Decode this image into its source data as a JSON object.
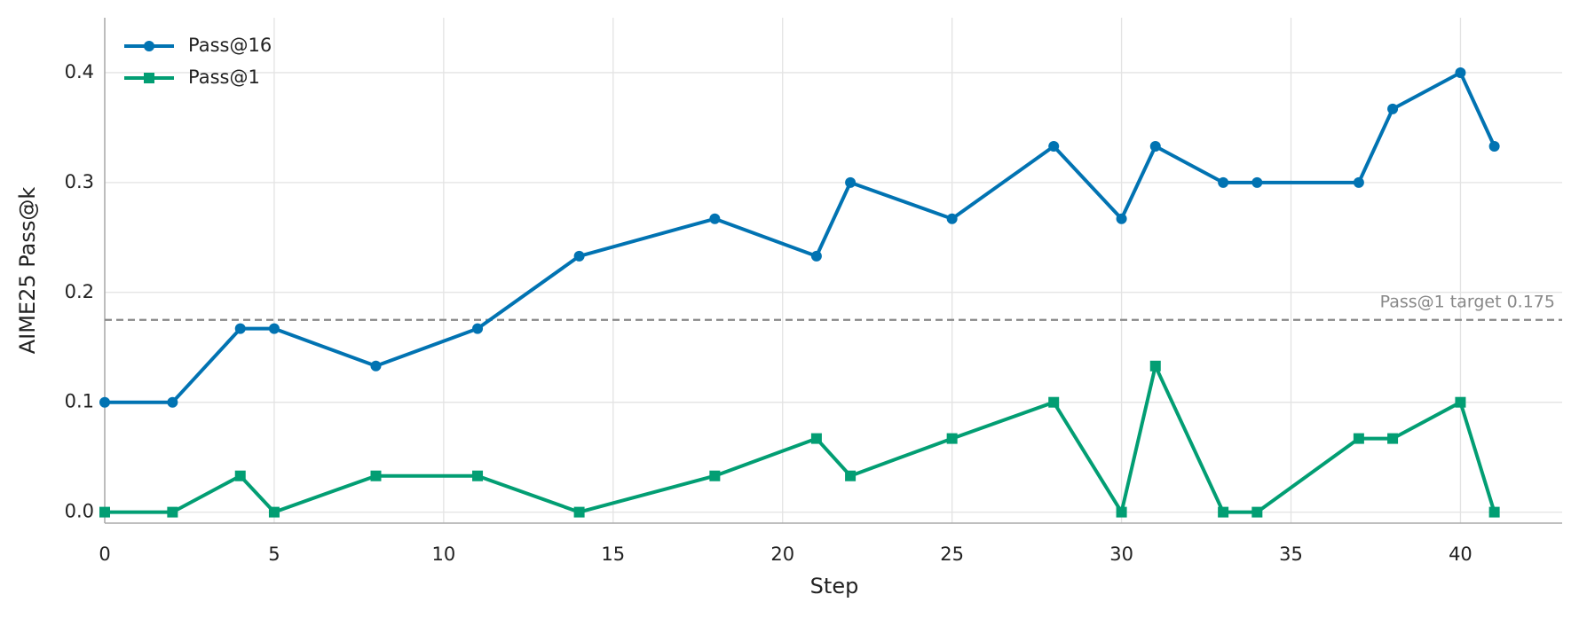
{
  "chart_data": {
    "type": "line",
    "xlabel": "Step",
    "ylabel": "AIME25 Pass@k",
    "x": [
      0,
      2,
      4,
      5,
      8,
      11,
      14,
      18,
      21,
      22,
      25,
      28,
      30,
      31,
      33,
      34,
      37,
      38,
      40,
      41
    ],
    "series": [
      {
        "name": "Pass@16",
        "color": "#0173b2",
        "marker": "circle",
        "values": [
          0.1,
          0.1,
          0.167,
          0.167,
          0.133,
          0.167,
          0.233,
          0.267,
          0.233,
          0.3,
          0.267,
          0.333,
          0.267,
          0.333,
          0.3,
          0.3,
          0.3,
          0.367,
          0.4,
          0.333
        ]
      },
      {
        "name": "Pass@1",
        "color": "#029e73",
        "marker": "square",
        "values": [
          0,
          0,
          0.033,
          0,
          0.033,
          0.033,
          0,
          0.033,
          0.067,
          0.033,
          0.067,
          0.1,
          0,
          0.133,
          0,
          0,
          0.067,
          0.067,
          0.1,
          0
        ]
      }
    ],
    "reference_line": {
      "value": 0.175,
      "label": "Pass@1 target 0.175",
      "color": "#888888"
    },
    "xlim": [
      0,
      43
    ],
    "xticks": [
      0,
      5,
      10,
      15,
      20,
      25,
      30,
      35,
      40
    ],
    "ylim": [
      -0.01,
      0.45
    ],
    "yticks": [
      {
        "value": 0,
        "label": "0.0"
      },
      0.1,
      0.2,
      0.3,
      0.4
    ],
    "grid": true,
    "legend": "upper left"
  }
}
